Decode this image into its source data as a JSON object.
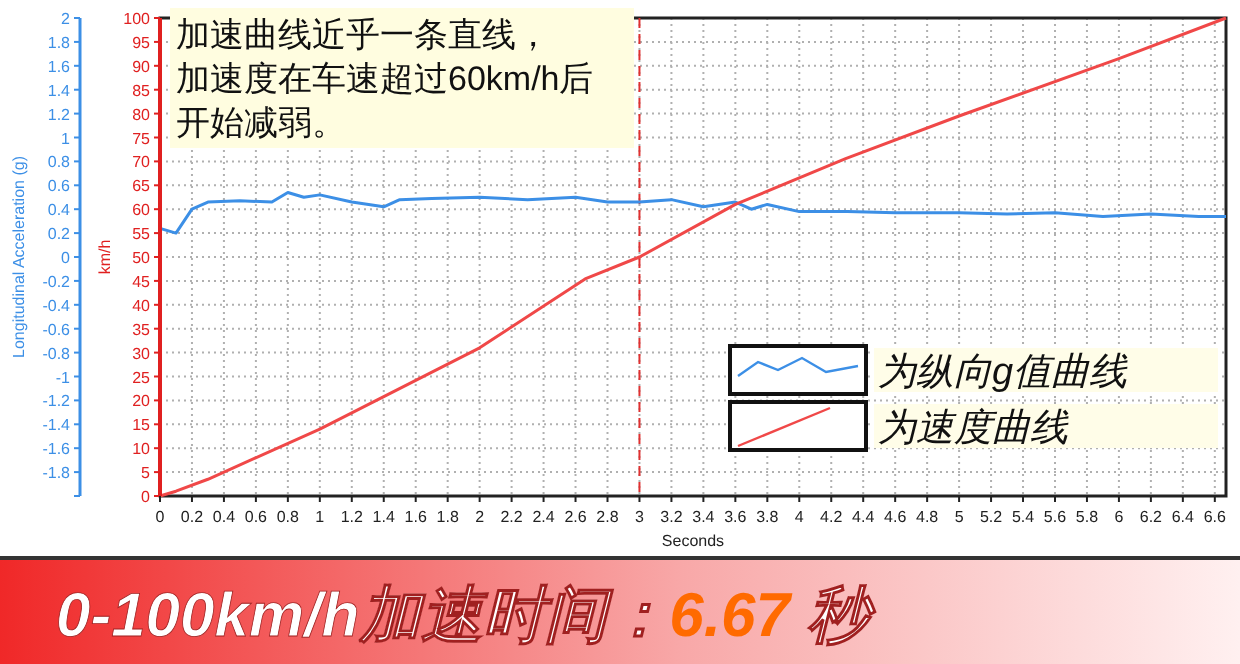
{
  "chart_data": {
    "type": "line",
    "xlabel": "Seconds",
    "ylabel": "Longitudinal Acceleration (g)",
    "y2label": "km/h",
    "annotations": [
      "加速曲线近乎一条直线，",
      "加速度在车速超过60km/h后",
      "开始减弱。",
      "0-100km/h加速时间：6.67 秒"
    ],
    "xlim": [
      0,
      6.67
    ],
    "xticks": [
      0,
      0.2,
      0.4,
      0.6,
      0.8,
      1,
      1.2,
      1.4,
      1.6,
      1.8,
      2,
      2.2,
      2.4,
      2.6,
      2.8,
      3,
      3.2,
      3.4,
      3.6,
      3.8,
      4,
      4.2,
      4.4,
      4.6,
      4.8,
      5,
      5.2,
      5.4,
      5.6,
      5.8,
      6,
      6.2,
      6.4,
      6.6
    ],
    "ylim": [
      -2,
      2
    ],
    "yticks": [
      {
        "value": -2,
        "label": null
      },
      -1.8,
      -1.6,
      -1.4,
      -1.2,
      -1,
      -0.8,
      -0.6,
      -0.4,
      -0.2,
      0,
      0.2,
      0.4,
      0.6,
      0.8,
      1,
      1.2,
      1.4,
      1.6,
      1.8,
      2
    ],
    "y2lim": [
      0,
      100
    ],
    "y2ticks": [
      0,
      5,
      10,
      15,
      20,
      25,
      30,
      35,
      40,
      45,
      50,
      55,
      60,
      65,
      70,
      75,
      80,
      85,
      90,
      95,
      100
    ],
    "grid": true,
    "legend": "bottom right",
    "ref_lines": [
      {
        "axis": "x",
        "value": 3,
        "color": "#e03030",
        "line_style": "dashed"
      }
    ],
    "series": [
      {
        "name": "为纵向g值曲线",
        "color": "#3c8fe6",
        "x": [
          0,
          0.1,
          0.2,
          0.3,
          0.5,
          0.7,
          0.8,
          0.9,
          1.0,
          1.2,
          1.4,
          1.5,
          1.7,
          2.0,
          2.3,
          2.6,
          2.8,
          3.0,
          3.2,
          3.4,
          3.6,
          3.7,
          3.8,
          4.0,
          4.3,
          4.6,
          5.0,
          5.3,
          5.6,
          5.9,
          6.2,
          6.5,
          6.67
        ],
        "values": [
          0.24,
          0.2,
          0.4,
          0.46,
          0.47,
          0.46,
          0.54,
          0.5,
          0.52,
          0.46,
          0.42,
          0.48,
          0.49,
          0.5,
          0.48,
          0.5,
          0.46,
          0.46,
          0.48,
          0.42,
          0.46,
          0.4,
          0.44,
          0.38,
          0.38,
          0.37,
          0.37,
          0.36,
          0.37,
          0.34,
          0.36,
          0.34,
          0.34
        ]
      },
      {
        "name": "为速度曲线",
        "color": "#f04848",
        "axis": "y2",
        "x": [
          0,
          0.1,
          0.3,
          1,
          2,
          2.66,
          3,
          3.6,
          4.29,
          5,
          6,
          6.67
        ],
        "values": [
          0,
          1,
          3.5,
          14,
          31,
          45.4,
          50,
          61,
          70.6,
          79.5,
          91.5,
          100
        ]
      }
    ]
  }
}
